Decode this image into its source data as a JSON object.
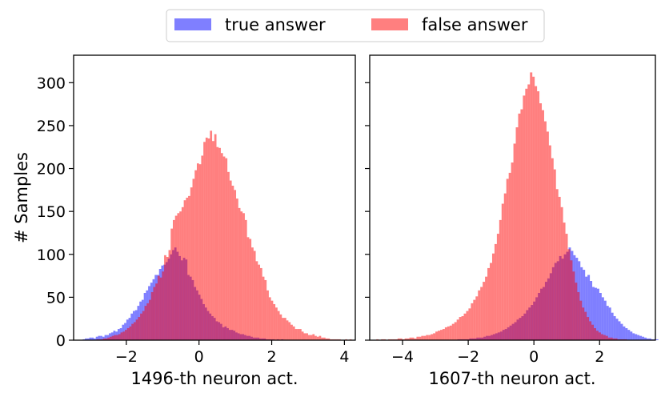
{
  "legend": {
    "placement": "top-center",
    "entries": [
      {
        "label": "true answer",
        "color": "#0000ff",
        "alpha": 0.5
      },
      {
        "label": "false answer",
        "color": "#ff0000",
        "alpha": 0.5
      }
    ]
  },
  "chart_data": [
    {
      "type": "histogram",
      "xlabel": "1496-th neuron act.",
      "ylabel": "# Samples",
      "xlim": [
        -3.45,
        4.3
      ],
      "ylim": [
        0,
        332
      ],
      "xticks": [
        -2,
        0,
        2,
        4
      ],
      "yticks": [
        0,
        50,
        100,
        150,
        200,
        250,
        300
      ],
      "grid": false,
      "series": [
        {
          "name": "true answer",
          "color": "#0000ff",
          "bins_start": -3.2,
          "bin_width": 0.06,
          "counts": [
            1,
            2,
            2,
            3,
            3,
            2,
            4,
            5,
            5,
            4,
            6,
            6,
            8,
            9,
            11,
            10,
            13,
            14,
            18,
            20,
            24,
            26,
            31,
            34,
            35,
            40,
            45,
            47,
            55,
            58,
            63,
            67,
            71,
            76,
            76,
            83,
            87,
            88,
            91,
            95,
            100,
            105,
            108,
            103,
            98,
            93,
            96,
            94,
            76,
            74,
            70,
            62,
            58,
            53,
            48,
            42,
            38,
            34,
            31,
            28,
            26,
            22,
            21,
            19,
            15,
            16,
            14,
            12,
            12,
            11,
            9,
            8,
            7,
            7,
            6,
            5,
            5,
            4,
            3,
            3,
            3,
            2,
            2,
            2,
            1,
            1,
            1,
            1,
            0,
            1,
            0,
            1,
            0,
            0,
            0,
            0
          ]
        },
        {
          "name": "false answer",
          "color": "#ff0000",
          "bins_start": -3.0,
          "bin_width": 0.06,
          "counts": [
            0,
            0,
            0,
            1,
            1,
            1,
            2,
            2,
            3,
            4,
            5,
            6,
            6,
            7,
            9,
            10,
            12,
            14,
            16,
            19,
            21,
            24,
            27,
            31,
            34,
            40,
            43,
            47,
            56,
            62,
            66,
            75,
            73,
            80,
            99,
            97,
            105,
            130,
            140,
            145,
            148,
            150,
            155,
            163,
            166,
            168,
            178,
            188,
            198,
            206,
            205,
            215,
            231,
            236,
            235,
            244,
            232,
            240,
            225,
            224,
            218,
            214,
            212,
            196,
            186,
            180,
            175,
            165,
            154,
            150,
            148,
            140,
            120,
            118,
            108,
            104,
            92,
            88,
            84,
            74,
            70,
            58,
            50,
            46,
            42,
            38,
            34,
            30,
            26,
            26,
            23,
            21,
            18,
            16,
            13,
            13,
            13,
            10,
            8,
            8,
            6,
            6,
            7,
            5,
            4,
            5,
            3,
            3,
            2,
            2,
            1,
            1,
            1,
            1,
            1,
            0,
            0,
            1,
            0,
            1,
            0
          ]
        }
      ]
    },
    {
      "type": "histogram",
      "xlabel": "1607-th neuron act.",
      "ylabel": "",
      "xlim": [
        -5.0,
        3.7
      ],
      "ylim": [
        0,
        332
      ],
      "xticks": [
        -4,
        -2,
        0,
        2
      ],
      "yticks": [
        0,
        50,
        100,
        150,
        200,
        250,
        300
      ],
      "grid": false,
      "series": [
        {
          "name": "true answer",
          "color": "#0000ff",
          "bins_start": -2.4,
          "bin_width": 0.072,
          "counts": [
            0,
            1,
            1,
            1,
            1,
            1,
            2,
            2,
            2,
            3,
            3,
            3,
            4,
            5,
            5,
            6,
            7,
            8,
            9,
            10,
            12,
            13,
            15,
            17,
            19,
            21,
            24,
            26,
            28,
            31,
            35,
            38,
            41,
            45,
            50,
            55,
            60,
            62,
            68,
            72,
            78,
            85,
            90,
            92,
            98,
            95,
            100,
            103,
            108,
            104,
            99,
            96,
            92,
            85,
            82,
            74,
            76,
            69,
            62,
            61,
            60,
            55,
            50,
            46,
            40,
            38,
            32,
            28,
            25,
            22,
            19,
            16,
            14,
            12,
            10,
            8,
            7,
            6,
            5,
            4,
            3,
            2,
            2,
            1,
            1,
            1,
            0
          ]
        },
        {
          "name": "false answer",
          "color": "#ff0000",
          "bins_start": -4.8,
          "bin_width": 0.072,
          "counts": [
            1,
            0,
            1,
            1,
            0,
            1,
            1,
            1,
            1,
            2,
            2,
            1,
            2,
            2,
            3,
            3,
            2,
            4,
            4,
            5,
            5,
            6,
            6,
            7,
            8,
            10,
            11,
            12,
            13,
            15,
            16,
            17,
            19,
            21,
            24,
            27,
            28,
            31,
            34,
            37,
            43,
            47,
            51,
            58,
            62,
            68,
            74,
            84,
            90,
            101,
            112,
            124,
            140,
            159,
            171,
            188,
            195,
            207,
            229,
            248,
            264,
            269,
            285,
            293,
            298,
            312,
            307,
            296,
            290,
            276,
            268,
            255,
            243,
            227,
            212,
            199,
            176,
            167,
            155,
            137,
            124,
            106,
            93,
            80,
            67,
            56,
            46,
            38,
            33,
            27,
            22,
            18,
            14,
            11,
            9,
            7,
            6,
            5,
            3,
            3,
            2,
            2,
            1,
            1,
            1,
            1,
            0
          ]
        }
      ]
    }
  ]
}
